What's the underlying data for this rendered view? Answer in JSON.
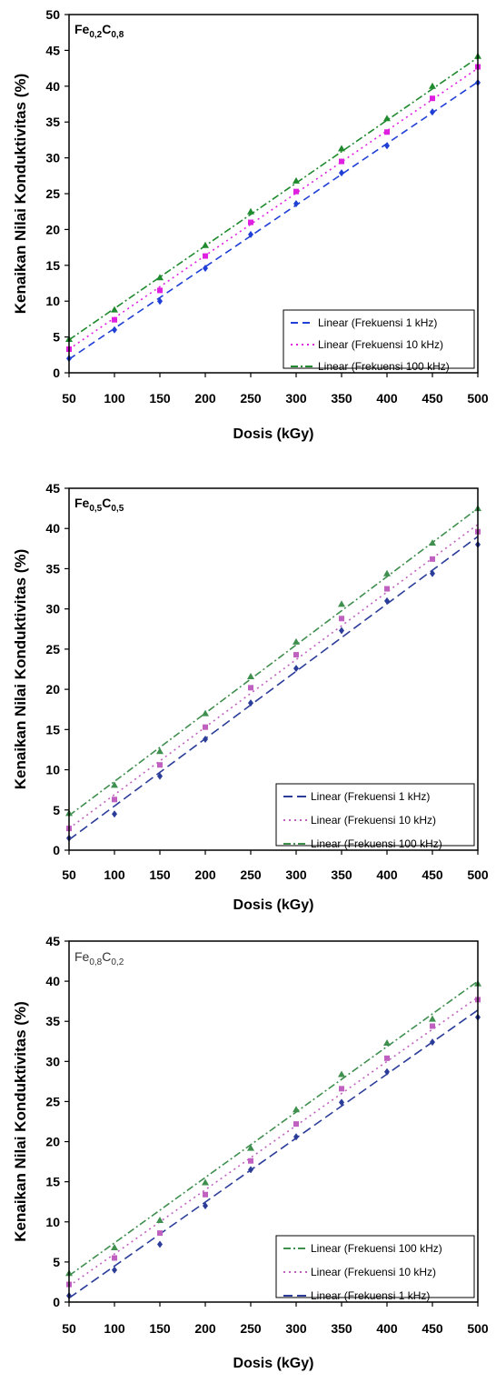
{
  "chart_data": [
    {
      "type": "line",
      "annotation": {
        "base1": "Fe",
        "sub1": "0,2",
        "base2": "C",
        "sub2": "0,8",
        "bold": true
      },
      "xlabel": "Dosis (kGy)",
      "ylabel": "Kenaikan Nilai Konduktivitas  (%)",
      "xlim": [
        50,
        500
      ],
      "ylim": [
        0,
        50
      ],
      "xticks": [
        "50",
        "100",
        "150",
        "200",
        "250",
        "300",
        "350",
        "400",
        "450",
        "500"
      ],
      "yticks": [
        "0",
        "5",
        "10",
        "15",
        "20",
        "25",
        "30",
        "35",
        "40",
        "45",
        "50"
      ],
      "grid": false,
      "legend_position": "bottom-right",
      "x": [
        50,
        100,
        150,
        200,
        250,
        300,
        350,
        400,
        450,
        500
      ],
      "series": [
        {
          "name": "Linear (Frekuensi 1 kHz)",
          "color": "#1f3fd6",
          "dash": "8,5",
          "marker": "diamond",
          "values": [
            2.0,
            6.0,
            10.0,
            14.6,
            19.3,
            23.6,
            27.9,
            31.7,
            36.4,
            40.5
          ],
          "fit": [
            1.9,
            40.6
          ]
        },
        {
          "name": "Linear (Frekuensi 10 kHz)",
          "color": "#e020e0",
          "dash": "2,4",
          "marker": "square",
          "values": [
            3.3,
            7.4,
            11.5,
            16.3,
            21.0,
            25.3,
            29.5,
            33.6,
            38.3,
            42.7
          ],
          "fit": [
            3.3,
            42.5
          ]
        },
        {
          "name": "Linear (Frekuensi 100 kHz)",
          "color": "#1f8a2e",
          "dash": "8,3,2,3",
          "marker": "triangle",
          "values": [
            4.7,
            8.8,
            13.3,
            17.8,
            22.5,
            26.8,
            31.3,
            35.5,
            40.0,
            44.2
          ],
          "fit": [
            4.6,
            44.0
          ]
        }
      ]
    },
    {
      "type": "line",
      "annotation": {
        "base1": "Fe",
        "sub1": "0,5",
        "base2": "C",
        "sub2": "0,5",
        "bold": true
      },
      "xlabel": "Dosis (kGy)",
      "ylabel": "Kenaikan Nilai Konduktivitas  (%)",
      "xlim": [
        50,
        500
      ],
      "ylim": [
        0,
        45
      ],
      "xticks": [
        "50",
        "100",
        "150",
        "200",
        "250",
        "300",
        "350",
        "400",
        "450",
        "500"
      ],
      "yticks": [
        "0",
        "5",
        "10",
        "15",
        "20",
        "25",
        "30",
        "35",
        "40",
        "45"
      ],
      "grid": false,
      "legend_position": "bottom-right",
      "x": [
        50,
        100,
        150,
        200,
        250,
        300,
        350,
        400,
        450,
        500
      ],
      "series": [
        {
          "name": "Linear (Frekuensi 1 kHz)",
          "color": "#2b3d99",
          "dash": "10,5",
          "marker": "diamond",
          "values": [
            1.5,
            4.5,
            9.2,
            13.8,
            18.3,
            22.6,
            27.3,
            31.0,
            34.4,
            38.0
          ],
          "fit": [
            1.3,
            39.0
          ]
        },
        {
          "name": "Linear (Frekuensi 10 kHz)",
          "color": "#c060c0",
          "dash": "2,4",
          "marker": "square",
          "values": [
            2.7,
            6.3,
            10.6,
            15.3,
            20.2,
            24.3,
            28.8,
            32.5,
            36.2,
            39.6
          ],
          "fit": [
            2.7,
            40.5
          ]
        },
        {
          "name": "Linear (Frekuensi 100 kHz)",
          "color": "#3f8f4f",
          "dash": "8,3,2,3",
          "marker": "triangle",
          "values": [
            4.6,
            8.1,
            12.3,
            17.0,
            21.6,
            25.9,
            30.6,
            34.4,
            38.2,
            42.5
          ],
          "fit": [
            4.3,
            42.5
          ]
        }
      ]
    },
    {
      "type": "line",
      "annotation": {
        "base1": "Fe",
        "sub1": "0,8",
        "base2": "C",
        "sub2": "0,2",
        "bold": false
      },
      "xlabel": "Dosis (kGy)",
      "ylabel": "Kenaikan Nilai Konduktivitas  (%)",
      "xlim": [
        50,
        500
      ],
      "ylim": [
        0,
        45
      ],
      "xticks": [
        "50",
        "100",
        "150",
        "200",
        "250",
        "300",
        "350",
        "400",
        "450",
        "500"
      ],
      "yticks": [
        "0",
        "5",
        "10",
        "15",
        "20",
        "25",
        "30",
        "35",
        "40",
        "45"
      ],
      "grid": false,
      "legend_position": "bottom-right",
      "legend_order": [
        2,
        1,
        0
      ],
      "x": [
        50,
        100,
        150,
        200,
        250,
        300,
        350,
        400,
        450,
        500
      ],
      "series": [
        {
          "name": "Linear (Frekuensi 1 kHz)",
          "color": "#2b3d99",
          "dash": "10,5",
          "marker": "diamond",
          "values": [
            0.8,
            4.0,
            7.2,
            12.0,
            16.5,
            20.6,
            24.9,
            28.7,
            32.4,
            35.5
          ],
          "fit": [
            0.5,
            36.4
          ]
        },
        {
          "name": "Linear (Frekuensi 10 kHz)",
          "color": "#c060c0",
          "dash": "2,4",
          "marker": "square",
          "values": [
            2.2,
            5.5,
            8.6,
            13.4,
            17.6,
            22.2,
            26.6,
            30.4,
            34.4,
            37.7
          ],
          "fit": [
            2.0,
            38.0
          ]
        },
        {
          "name": "Linear (Frekuensi 100 kHz)",
          "color": "#3f8f4f",
          "dash": "8,3,2,3",
          "marker": "triangle",
          "values": [
            3.6,
            6.8,
            10.2,
            14.9,
            19.2,
            24.0,
            28.4,
            32.3,
            35.3,
            39.7
          ],
          "fit": [
            3.3,
            40.0
          ]
        }
      ]
    }
  ]
}
